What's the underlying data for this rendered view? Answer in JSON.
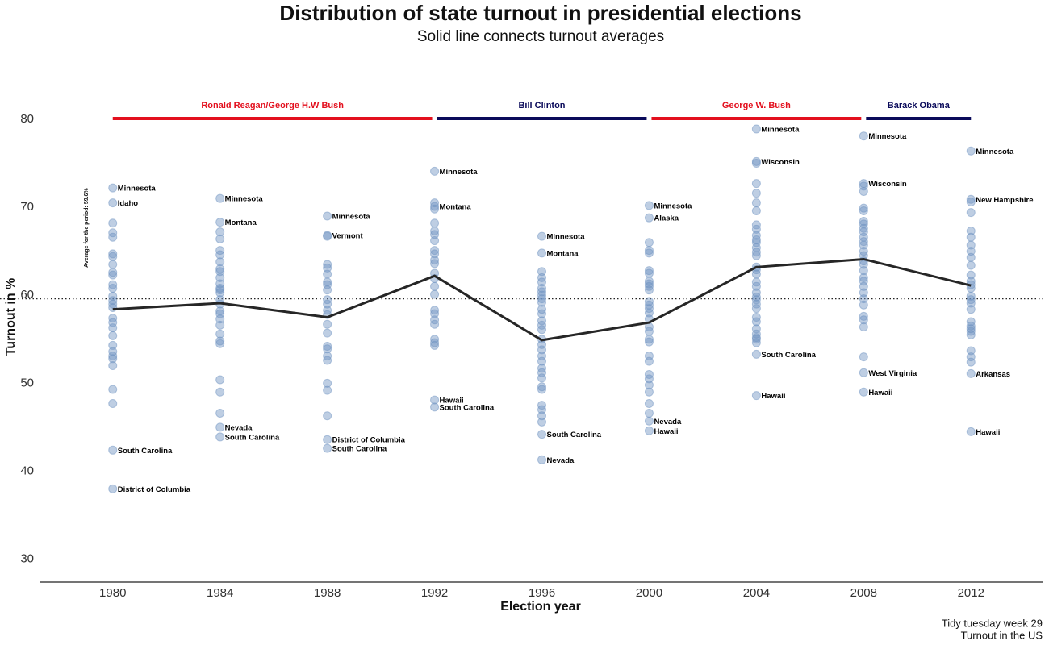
{
  "chart_data": {
    "type": "strip",
    "title": "Distribution of state turnout in presidential elections",
    "subtitle": "Solid line connects turnout averages",
    "x_label": "Election year",
    "y_label": "Turnout in %",
    "caption": [
      "Tidy tuesday week 29",
      "Turnout in the US"
    ],
    "xlim": [
      1977.3,
      2014.7
    ],
    "ylim": [
      27.4,
      84
    ],
    "xticks": [
      1980,
      1984,
      1988,
      1992,
      1996,
      2000,
      2004,
      2008,
      2012
    ],
    "yticks": [
      30,
      40,
      50,
      60,
      70,
      80
    ],
    "point_color": "#6f93c2",
    "line_color": "#262626",
    "reference": {
      "value": 59.6,
      "label": "Average for the period: 59.6%"
    },
    "eras": [
      {
        "label": "Ronald Reagan/George H.W Bush",
        "start": 1980,
        "end": 1992,
        "color": "#e3101e"
      },
      {
        "label": "Bill Clinton",
        "start": 1992,
        "end": 2000,
        "color": "#0a0a5a"
      },
      {
        "label": "George W. Bush",
        "start": 2000,
        "end": 2008,
        "color": "#e3101e"
      },
      {
        "label": "Barack Obama",
        "start": 2008,
        "end": 2012,
        "color": "#0a0a5a"
      }
    ],
    "averages": {
      "x": [
        1980,
        1984,
        1988,
        1992,
        1996,
        2000,
        2004,
        2008,
        2012
      ],
      "y": [
        58.4,
        59.1,
        57.5,
        62.2,
        54.9,
        56.9,
        63.2,
        64.1,
        61.1
      ]
    },
    "groups": [
      {
        "x": 1980,
        "values": [
          72.2,
          70.5,
          42.4,
          38.0,
          68.2,
          67.1,
          66.6,
          64.7,
          64.4,
          63.5,
          62.6,
          62.3,
          61.2,
          60.8,
          59.9,
          59.4,
          59.0,
          58.6,
          57.4,
          56.9,
          56.3,
          55.4,
          54.3,
          53.6,
          53.1,
          52.8,
          52.0,
          49.3,
          47.7
        ],
        "labels": [
          "Minnesota",
          "Idaho",
          "South Carolina",
          "District of Columbia",
          null,
          null,
          null,
          null,
          null,
          null,
          null,
          null,
          null,
          null,
          null,
          null,
          null,
          null,
          null,
          null,
          null,
          null,
          null,
          null,
          null,
          null,
          null,
          null,
          null
        ]
      },
      {
        "x": 1984,
        "values": [
          71.0,
          68.3,
          45.0,
          43.9,
          67.2,
          66.4,
          65.1,
          64.6,
          63.8,
          63.0,
          62.7,
          62.0,
          61.3,
          60.8,
          60.6,
          60.3,
          59.5,
          59.0,
          58.2,
          57.9,
          57.3,
          56.6,
          55.6,
          54.8,
          54.5,
          50.4,
          49.0,
          46.6
        ],
        "labels": [
          "Minnesota",
          "Montana",
          "Nevada",
          "South Carolina",
          null,
          null,
          null,
          null,
          null,
          null,
          null,
          null,
          null,
          null,
          null,
          null,
          null,
          null,
          null,
          null,
          null,
          null,
          null,
          null,
          null,
          null,
          null,
          null
        ]
      },
      {
        "x": 1988,
        "values": [
          69.0,
          66.8,
          43.6,
          42.6,
          66.7,
          63.5,
          63.1,
          62.4,
          61.5,
          61.2,
          60.6,
          59.5,
          59.0,
          58.3,
          57.8,
          56.7,
          55.7,
          54.2,
          53.9,
          53.1,
          52.6,
          50.0,
          49.2,
          46.3
        ],
        "labels": [
          "Minnesota",
          "Vermont",
          "District of Columbia",
          "South Carolina",
          null,
          null,
          null,
          null,
          null,
          null,
          null,
          null,
          null,
          null,
          null,
          null,
          null,
          null,
          null,
          null,
          null,
          null,
          null,
          null
        ]
      },
      {
        "x": 1992,
        "values": [
          74.1,
          70.1,
          48.1,
          47.3,
          70.5,
          69.8,
          68.2,
          67.3,
          66.9,
          66.2,
          65.1,
          64.7,
          64.0,
          63.6,
          62.5,
          61.9,
          61.0,
          60.1,
          58.3,
          57.9,
          57.2,
          56.7,
          55.0,
          54.6,
          54.3
        ],
        "labels": [
          "Minnesota",
          "Montana",
          "Hawaii",
          "South Carolina",
          null,
          null,
          null,
          null,
          null,
          null,
          null,
          null,
          null,
          null,
          null,
          null,
          null,
          null,
          null,
          null,
          null,
          null,
          null,
          null,
          null
        ]
      },
      {
        "x": 1996,
        "values": [
          66.7,
          64.8,
          44.2,
          41.3,
          62.7,
          62.0,
          61.5,
          60.8,
          60.4,
          60.0,
          59.6,
          59.2,
          58.4,
          57.9,
          57.1,
          56.6,
          56.1,
          55.0,
          54.4,
          53.8,
          53.1,
          52.5,
          51.7,
          51.2,
          50.6,
          49.6,
          49.3,
          47.5,
          47.0,
          46.3,
          45.6
        ],
        "labels": [
          "Minnesota",
          "Montana",
          "South Carolina",
          "Nevada",
          null,
          null,
          null,
          null,
          null,
          null,
          null,
          null,
          null,
          null,
          null,
          null,
          null,
          null,
          null,
          null,
          null,
          null,
          null,
          null,
          null,
          null,
          null,
          null,
          null,
          null,
          null
        ]
      },
      {
        "x": 2000,
        "values": [
          70.2,
          68.8,
          45.7,
          44.6,
          66.0,
          65.1,
          64.8,
          62.8,
          62.5,
          61.6,
          61.3,
          61.0,
          60.6,
          59.3,
          58.9,
          58.5,
          58.0,
          57.3,
          56.4,
          55.9,
          55.0,
          54.7,
          53.1,
          52.5,
          51.0,
          50.5,
          49.8,
          49.0,
          47.7,
          46.6
        ],
        "labels": [
          "Minnesota",
          "Alaska",
          "Nevada",
          "Hawaii",
          null,
          null,
          null,
          null,
          null,
          null,
          null,
          null,
          null,
          null,
          null,
          null,
          null,
          null,
          null,
          null,
          null,
          null,
          null,
          null,
          null,
          null,
          null,
          null,
          null,
          null
        ]
      },
      {
        "x": 2004,
        "values": [
          78.9,
          75.2,
          53.3,
          48.6,
          75.0,
          72.7,
          71.6,
          70.5,
          69.6,
          68.0,
          67.5,
          66.8,
          66.3,
          66.0,
          65.4,
          64.9,
          64.5,
          63.2,
          62.9,
          62.4,
          61.5,
          61.0,
          60.3,
          59.8,
          59.5,
          59.0,
          58.5,
          57.5,
          57.0,
          56.2,
          55.6,
          55.2,
          55.0,
          54.6
        ],
        "labels": [
          "Minnesota",
          "Wisconsin",
          "South Carolina",
          "Hawaii",
          null,
          null,
          null,
          null,
          null,
          null,
          null,
          null,
          null,
          null,
          null,
          null,
          null,
          null,
          null,
          null,
          null,
          null,
          null,
          null,
          null,
          null,
          null,
          null,
          null,
          null,
          null,
          null,
          null,
          null
        ]
      },
      {
        "x": 2008,
        "values": [
          78.1,
          72.7,
          51.2,
          49.0,
          72.4,
          71.8,
          69.9,
          69.6,
          68.4,
          68.1,
          67.6,
          67.2,
          66.6,
          66.1,
          65.7,
          65.0,
          64.5,
          63.9,
          63.5,
          62.8,
          62.0,
          61.6,
          61.0,
          60.3,
          59.6,
          58.9,
          57.6,
          57.2,
          56.4,
          53.0
        ],
        "labels": [
          "Minnesota",
          "Wisconsin",
          "West Virginia",
          "Hawaii",
          null,
          null,
          null,
          null,
          null,
          null,
          null,
          null,
          null,
          null,
          null,
          null,
          null,
          null,
          null,
          null,
          null,
          null,
          null,
          null,
          null,
          null,
          null,
          null,
          null,
          null
        ]
      },
      {
        "x": 2012,
        "values": [
          76.4,
          70.9,
          51.1,
          44.5,
          70.6,
          69.4,
          67.3,
          66.6,
          65.7,
          65.0,
          64.3,
          63.4,
          62.3,
          61.6,
          61.2,
          60.8,
          59.9,
          59.5,
          59.1,
          58.4,
          57.0,
          56.5,
          56.2,
          55.9,
          55.5,
          53.7,
          53.0,
          52.4
        ],
        "labels": [
          "Minnesota",
          "New Hampshire",
          "Arkansas",
          "Hawaii",
          null,
          null,
          null,
          null,
          null,
          null,
          null,
          null,
          null,
          null,
          null,
          null,
          null,
          null,
          null,
          null,
          null,
          null,
          null,
          null,
          null,
          null,
          null,
          null
        ]
      }
    ]
  }
}
